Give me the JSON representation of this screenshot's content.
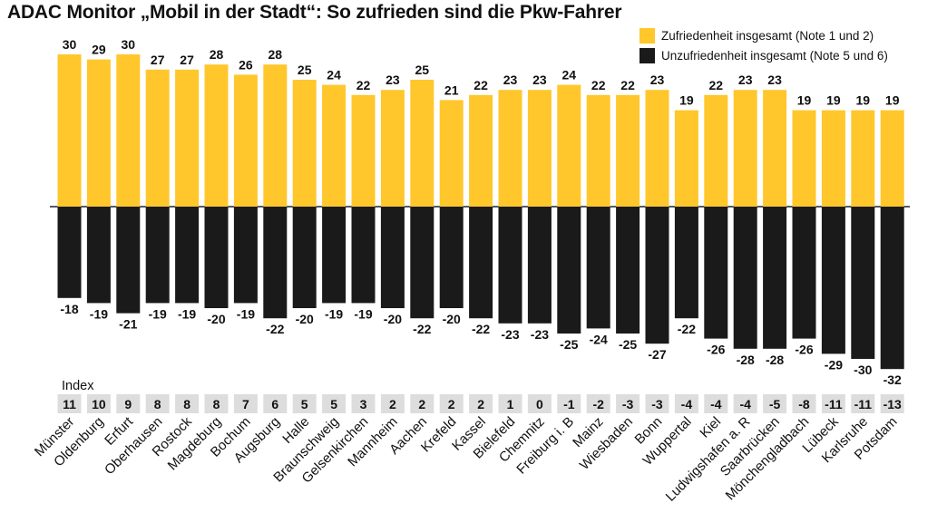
{
  "title": "ADAC Monitor „Mobil in der Stadt“: So zufrieden sind die Pkw-Fahrer",
  "legend": {
    "positive_label": "Zufriedenheit insgesamt (Note 1 und 2)",
    "negative_label": "Unzufriedenheit insgesamt (Note 5 und 6)"
  },
  "colors": {
    "positive": "#FFC72C",
    "negative": "#1A1A1A",
    "index_box": "#DDDDDD"
  },
  "index_label": "Index",
  "chart_data": {
    "type": "bar",
    "stacking": "diverging",
    "categories": [
      "Münster",
      "Oldenburg",
      "Erfurt",
      "Oberhausen",
      "Rostock",
      "Magdeburg",
      "Bochum",
      "Augsburg",
      "Halle",
      "Braunschweig",
      "Gelsenkirchen",
      "Mannheim",
      "Aachen",
      "Krefeld",
      "Kassel",
      "Bielefeld",
      "Chemnitz",
      "Freiburg i. B",
      "Mainz",
      "Wiesbaden",
      "Bonn",
      "Wuppertal",
      "Kiel",
      "Ludwigshafen a. R",
      "Saarbrücken",
      "Mönchengladbach",
      "Lübeck",
      "Karlsruhe",
      "Potsdam"
    ],
    "series": [
      {
        "name": "Zufriedenheit insgesamt (Note 1 und 2)",
        "values": [
          30,
          29,
          30,
          27,
          27,
          28,
          26,
          28,
          25,
          24,
          22,
          23,
          25,
          21,
          22,
          23,
          23,
          24,
          22,
          22,
          23,
          19,
          22,
          23,
          23,
          19,
          19,
          19,
          19
        ]
      },
      {
        "name": "Unzufriedenheit insgesamt (Note 5 und 6)",
        "values": [
          -18,
          -19,
          -21,
          -19,
          -19,
          -20,
          -19,
          -22,
          -20,
          -19,
          -19,
          -20,
          -22,
          -20,
          -22,
          -23,
          -23,
          -25,
          -24,
          -25,
          -27,
          -22,
          -26,
          -28,
          -28,
          -26,
          -29,
          -30,
          -32
        ]
      }
    ],
    "index": [
      11,
      10,
      9,
      8,
      8,
      8,
      7,
      6,
      5,
      5,
      3,
      2,
      2,
      2,
      2,
      1,
      0,
      -1,
      -2,
      -3,
      -3,
      -4,
      -4,
      -4,
      -5,
      -8,
      -11,
      -11,
      -13
    ],
    "legend_position": "top-right",
    "grid": false
  }
}
